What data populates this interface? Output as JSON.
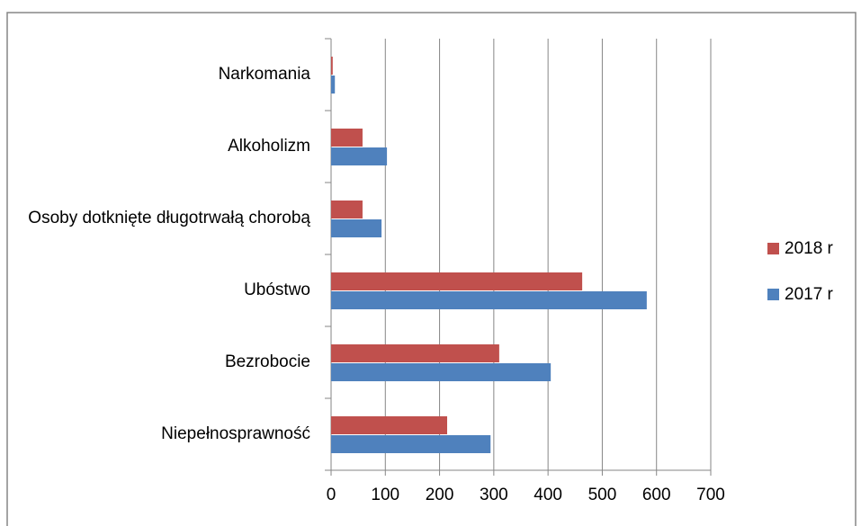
{
  "chart_data": {
    "type": "bar",
    "orientation": "horizontal",
    "categories": [
      "Narkomania",
      "Alkoholizm",
      "Osoby dotknięte długotrwałą chorobą",
      "Ubóstwo",
      "Bezrobocie",
      "Niepełnosprawność"
    ],
    "series": [
      {
        "name": "2018 r",
        "color": "#c0504d",
        "values": [
          3,
          58,
          58,
          463,
          310,
          214
        ]
      },
      {
        "name": "2017 r",
        "color": "#4f81bd",
        "values": [
          7,
          103,
          93,
          582,
          405,
          294
        ]
      }
    ],
    "xlim": [
      0,
      700
    ],
    "xticks": [
      0,
      100,
      200,
      300,
      400,
      500,
      600,
      700
    ],
    "grid": true,
    "legend": "right"
  }
}
